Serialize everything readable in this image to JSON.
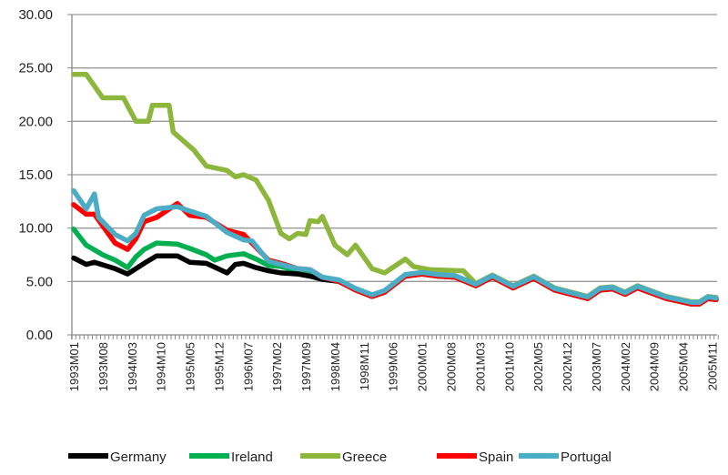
{
  "chart_data": {
    "type": "line",
    "title": "",
    "xlabel": "",
    "ylabel": "",
    "ylim": [
      0,
      30
    ],
    "yticks": [
      "0.00",
      "5.00",
      "10.00",
      "15.00",
      "20.00",
      "25.00",
      "30.00"
    ],
    "grid": "horizontal",
    "legend_position": "bottom",
    "x_unit": "month index from 1993M01 (0) to 2005M12 (155)",
    "xlim": [
      0,
      155
    ],
    "xtick_step_months": 7,
    "xticks": [
      "1993M01",
      "1993M08",
      "1994M03",
      "1994M10",
      "1995M05",
      "1995M12",
      "1996M07",
      "1997M02",
      "1997M09",
      "1998M04",
      "1998M11",
      "1999M06",
      "2000M01",
      "2000M08",
      "2001M03",
      "2001M10",
      "2002M05",
      "2002M12",
      "2003M07",
      "2004M02",
      "2004M09",
      "2005M04",
      "2005M11"
    ],
    "converged_tail": [
      [
        64,
        5.1
      ],
      [
        68,
        4.3
      ],
      [
        72,
        3.7
      ],
      [
        75,
        4.1
      ],
      [
        80,
        5.6
      ],
      [
        84,
        5.8
      ],
      [
        88,
        5.6
      ],
      [
        92,
        5.5
      ],
      [
        97,
        4.7
      ],
      [
        101,
        5.5
      ],
      [
        106,
        4.5
      ],
      [
        111,
        5.4
      ],
      [
        116,
        4.3
      ],
      [
        121,
        3.8
      ],
      [
        124,
        3.5
      ],
      [
        127,
        4.3
      ],
      [
        130,
        4.4
      ],
      [
        133,
        3.9
      ],
      [
        136,
        4.5
      ],
      [
        143,
        3.5
      ],
      [
        149,
        3.0
      ],
      [
        151,
        3.0
      ],
      [
        153,
        3.5
      ],
      [
        155,
        3.4
      ]
    ],
    "series": [
      {
        "name": "Greece",
        "color": "#8db63c",
        "tail_from": 97,
        "tail_offset": 0.1,
        "points": [
          [
            0,
            24.4
          ],
          [
            3,
            24.4
          ],
          [
            7,
            22.2
          ],
          [
            12,
            22.2
          ],
          [
            15,
            20.0
          ],
          [
            18,
            20.0
          ],
          [
            19,
            21.5
          ],
          [
            23,
            21.5
          ],
          [
            24,
            19.0
          ],
          [
            29,
            17.3
          ],
          [
            32,
            15.8
          ],
          [
            37,
            15.4
          ],
          [
            39,
            14.8
          ],
          [
            41,
            15.0
          ],
          [
            44,
            14.5
          ],
          [
            47,
            12.6
          ],
          [
            50,
            9.5
          ],
          [
            52,
            9.0
          ],
          [
            54,
            9.5
          ],
          [
            56,
            9.4
          ],
          [
            57,
            10.7
          ],
          [
            59,
            10.6
          ],
          [
            60,
            11.1
          ],
          [
            63,
            8.4
          ],
          [
            66,
            7.5
          ],
          [
            68,
            8.4
          ],
          [
            72,
            6.2
          ],
          [
            75,
            5.8
          ],
          [
            80,
            7.1
          ],
          [
            82,
            6.4
          ],
          [
            86,
            6.1
          ],
          [
            94,
            6.0
          ]
        ]
      },
      {
        "name": "Ireland",
        "color": "#00b050",
        "tail_from": 64,
        "tail_offset": 0,
        "points": [
          [
            0,
            9.9
          ],
          [
            3,
            8.4
          ],
          [
            7,
            7.5
          ],
          [
            10,
            7.0
          ],
          [
            13,
            6.3
          ],
          [
            15,
            7.3
          ],
          [
            17,
            8.0
          ],
          [
            20,
            8.6
          ],
          [
            25,
            8.5
          ],
          [
            28,
            8.1
          ],
          [
            32,
            7.5
          ],
          [
            34,
            7.0
          ],
          [
            37,
            7.4
          ],
          [
            41,
            7.6
          ],
          [
            44,
            7.1
          ],
          [
            47,
            6.5
          ],
          [
            50,
            6.4
          ],
          [
            54,
            6.0
          ],
          [
            57,
            5.9
          ],
          [
            60,
            5.3
          ]
        ]
      },
      {
        "name": "Germany",
        "color": "#000000",
        "tail_from": 64,
        "tail_offset": -0.1,
        "points": [
          [
            0,
            7.2
          ],
          [
            3,
            6.6
          ],
          [
            5,
            6.8
          ],
          [
            10,
            6.2
          ],
          [
            13,
            5.7
          ],
          [
            15,
            6.2
          ],
          [
            17,
            6.7
          ],
          [
            20,
            7.4
          ],
          [
            25,
            7.4
          ],
          [
            28,
            6.8
          ],
          [
            32,
            6.7
          ],
          [
            37,
            5.8
          ],
          [
            39,
            6.6
          ],
          [
            41,
            6.7
          ],
          [
            44,
            6.3
          ],
          [
            47,
            6.0
          ],
          [
            50,
            5.8
          ],
          [
            54,
            5.7
          ],
          [
            57,
            5.5
          ],
          [
            60,
            5.2
          ]
        ]
      },
      {
        "name": "Spain",
        "color": "#ff0000",
        "tail_from": 64,
        "tail_offset": -0.1,
        "points": [
          [
            0,
            12.2
          ],
          [
            3,
            11.3
          ],
          [
            5,
            11.3
          ],
          [
            7,
            10.2
          ],
          [
            10,
            8.6
          ],
          [
            13,
            8.0
          ],
          [
            15,
            9.0
          ],
          [
            17,
            10.6
          ],
          [
            20,
            11.0
          ],
          [
            25,
            12.3
          ],
          [
            28,
            11.2
          ],
          [
            32,
            11.0
          ],
          [
            37,
            9.8
          ],
          [
            41,
            9.4
          ],
          [
            47,
            7.0
          ],
          [
            50,
            6.7
          ],
          [
            54,
            6.2
          ],
          [
            57,
            6.1
          ],
          [
            60,
            5.4
          ]
        ]
      },
      {
        "name": "Portugal",
        "color": "#4bacc6",
        "tail_from": 64,
        "tail_offset": 0.05,
        "points": [
          [
            0,
            13.5
          ],
          [
            3,
            11.8
          ],
          [
            5,
            13.2
          ],
          [
            6,
            11.0
          ],
          [
            10,
            9.4
          ],
          [
            13,
            8.8
          ],
          [
            15,
            9.5
          ],
          [
            17,
            11.2
          ],
          [
            20,
            11.8
          ],
          [
            25,
            12.0
          ],
          [
            28,
            11.6
          ],
          [
            32,
            11.1
          ],
          [
            37,
            9.6
          ],
          [
            41,
            8.9
          ],
          [
            43,
            8.8
          ],
          [
            47,
            6.9
          ],
          [
            50,
            6.6
          ],
          [
            54,
            6.2
          ],
          [
            57,
            6.1
          ],
          [
            60,
            5.4
          ]
        ]
      }
    ]
  }
}
